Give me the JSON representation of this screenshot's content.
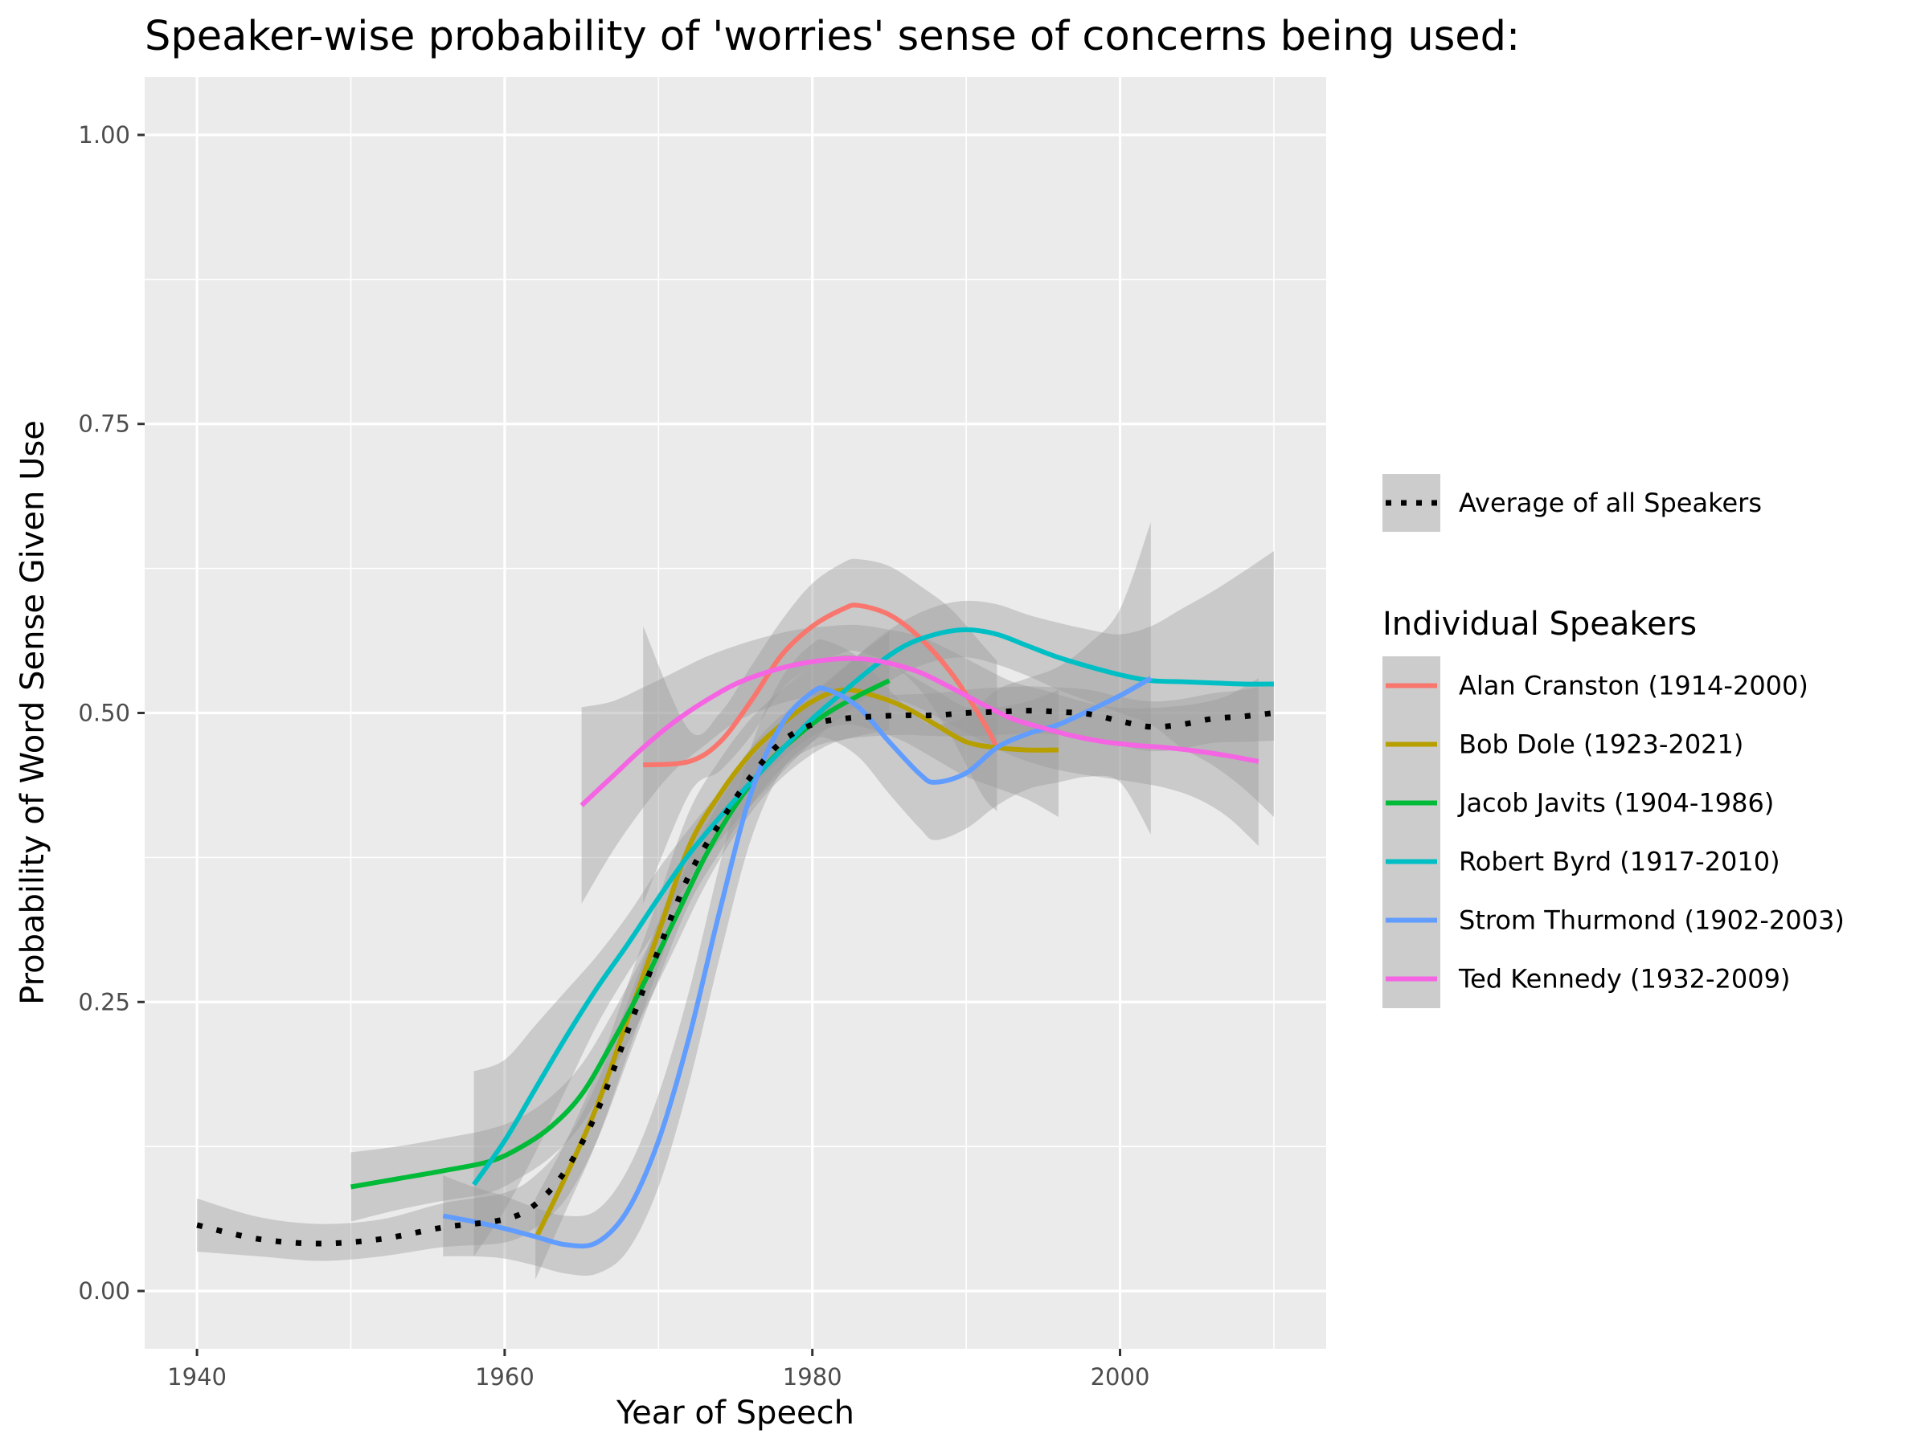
{
  "chart_data": {
    "type": "line",
    "title": "Speaker-wise probability of 'worries' sense of concerns being used:",
    "xlabel": "Year of Speech",
    "ylabel": "Probability of Word Sense Given Use",
    "xlim": [
      1936.6,
      2013.4
    ],
    "ylim": [
      -0.05,
      1.05
    ],
    "x_ticks": [
      1940,
      1960,
      1980,
      2000
    ],
    "x_tick_labels": [
      "1940",
      "1960",
      "1980",
      "2000"
    ],
    "y_ticks": [
      0,
      0.25,
      0.5,
      0.75,
      1.0
    ],
    "y_tick_labels": [
      "0.00",
      "0.25",
      "0.50",
      "0.75",
      "1.00"
    ],
    "grid": true,
    "legend_position": "right",
    "average_legend_label": "Average of all Speakers",
    "legend_title": "Individual Speakers",
    "average": {
      "name": "Average of all Speakers",
      "color": "#000000",
      "x": [
        1940,
        1944,
        1948,
        1952,
        1956,
        1960,
        1962,
        1964,
        1966,
        1968,
        1970,
        1972,
        1974,
        1976,
        1978,
        1980,
        1982,
        1984,
        1986,
        1988,
        1990,
        1992,
        1994,
        1996,
        1998,
        2000,
        2002,
        2004,
        2006,
        2008,
        2010
      ],
      "y": [
        0.057,
        0.045,
        0.041,
        0.045,
        0.055,
        0.062,
        0.075,
        0.105,
        0.155,
        0.225,
        0.295,
        0.36,
        0.405,
        0.445,
        0.475,
        0.49,
        0.495,
        0.497,
        0.498,
        0.498,
        0.5,
        0.501,
        0.502,
        0.501,
        0.499,
        0.493,
        0.488,
        0.49,
        0.495,
        0.497,
        0.5
      ],
      "band": [
        [
          0.08,
          0.034
        ],
        [
          0.064,
          0.03
        ],
        [
          0.058,
          0.026
        ],
        [
          0.062,
          0.03
        ],
        [
          0.076,
          0.038
        ],
        [
          0.085,
          0.042
        ],
        [
          0.1,
          0.055
        ],
        [
          0.13,
          0.08
        ],
        [
          0.18,
          0.13
        ],
        [
          0.25,
          0.2
        ],
        [
          0.32,
          0.27
        ],
        [
          0.385,
          0.335
        ],
        [
          0.43,
          0.38
        ],
        [
          0.47,
          0.42
        ],
        [
          0.498,
          0.452
        ],
        [
          0.512,
          0.47
        ],
        [
          0.515,
          0.477
        ],
        [
          0.515,
          0.48
        ],
        [
          0.516,
          0.481
        ],
        [
          0.517,
          0.48
        ],
        [
          0.52,
          0.48
        ],
        [
          0.522,
          0.481
        ],
        [
          0.523,
          0.482
        ],
        [
          0.522,
          0.481
        ],
        [
          0.52,
          0.478
        ],
        [
          0.514,
          0.472
        ],
        [
          0.51,
          0.467
        ],
        [
          0.512,
          0.469
        ],
        [
          0.517,
          0.474
        ],
        [
          0.52,
          0.475
        ],
        [
          0.525,
          0.476
        ]
      ]
    },
    "series": [
      {
        "name": "Alan Cranston (1914-2000)",
        "color": "#F8766D",
        "x": [
          1969,
          1972,
          1974,
          1976,
          1978,
          1980,
          1982,
          1983,
          1985,
          1987,
          1989,
          1991,
          1992
        ],
        "y": [
          0.455,
          0.458,
          0.475,
          0.51,
          0.55,
          0.575,
          0.59,
          0.593,
          0.585,
          0.565,
          0.535,
          0.495,
          0.47
        ],
        "band": [
          [
            0.575,
            0.335
          ],
          [
            0.485,
            0.43
          ],
          [
            0.5,
            0.45
          ],
          [
            0.54,
            0.48
          ],
          [
            0.58,
            0.52
          ],
          [
            0.612,
            0.54
          ],
          [
            0.63,
            0.552
          ],
          [
            0.633,
            0.553
          ],
          [
            0.627,
            0.543
          ],
          [
            0.61,
            0.52
          ],
          [
            0.59,
            0.48
          ],
          [
            0.56,
            0.43
          ],
          [
            0.545,
            0.415
          ]
        ]
      },
      {
        "name": "Bob Dole (1923-2021)",
        "color": "#B79F00",
        "x": [
          1962,
          1964,
          1966,
          1968,
          1970,
          1972,
          1974,
          1976,
          1978,
          1980,
          1982,
          1984,
          1986,
          1988,
          1990,
          1992,
          1994,
          1996
        ],
        "y": [
          0.045,
          0.1,
          0.16,
          0.235,
          0.31,
          0.385,
          0.43,
          0.465,
          0.49,
          0.51,
          0.52,
          0.515,
          0.505,
          0.49,
          0.475,
          0.47,
          0.468,
          0.468
        ],
        "band": [
          [
            0.08,
            0.01
          ],
          [
            0.13,
            0.07
          ],
          [
            0.19,
            0.13
          ],
          [
            0.265,
            0.205
          ],
          [
            0.34,
            0.28
          ],
          [
            0.415,
            0.355
          ],
          [
            0.46,
            0.4
          ],
          [
            0.495,
            0.435
          ],
          [
            0.52,
            0.46
          ],
          [
            0.54,
            0.48
          ],
          [
            0.55,
            0.49
          ],
          [
            0.545,
            0.485
          ],
          [
            0.535,
            0.475
          ],
          [
            0.52,
            0.46
          ],
          [
            0.505,
            0.445
          ],
          [
            0.505,
            0.435
          ],
          [
            0.51,
            0.425
          ],
          [
            0.52,
            0.41
          ]
        ]
      },
      {
        "name": "Jacob Javits (1904-1986)",
        "color": "#00BA38",
        "x": [
          1950,
          1953,
          1956,
          1959,
          1961,
          1963,
          1965,
          1967,
          1969,
          1971,
          1973,
          1975,
          1977,
          1979,
          1981,
          1983,
          1985
        ],
        "y": [
          0.09,
          0.097,
          0.104,
          0.112,
          0.124,
          0.142,
          0.17,
          0.215,
          0.265,
          0.32,
          0.375,
          0.42,
          0.455,
          0.48,
          0.5,
          0.515,
          0.528
        ],
        "band": [
          [
            0.12,
            0.06
          ],
          [
            0.125,
            0.07
          ],
          [
            0.132,
            0.078
          ],
          [
            0.14,
            0.085
          ],
          [
            0.15,
            0.098
          ],
          [
            0.168,
            0.116
          ],
          [
            0.196,
            0.144
          ],
          [
            0.24,
            0.19
          ],
          [
            0.29,
            0.24
          ],
          [
            0.345,
            0.295
          ],
          [
            0.4,
            0.35
          ],
          [
            0.445,
            0.395
          ],
          [
            0.48,
            0.43
          ],
          [
            0.505,
            0.455
          ],
          [
            0.528,
            0.472
          ],
          [
            0.55,
            0.48
          ],
          [
            0.57,
            0.485
          ]
        ]
      },
      {
        "name": "Robert Byrd (1917-2010)",
        "color": "#00BFC4",
        "x": [
          1958,
          1960,
          1962,
          1964,
          1966,
          1968,
          1970,
          1972,
          1974,
          1976,
          1978,
          1980,
          1982,
          1984,
          1986,
          1988,
          1990,
          1992,
          1994,
          1996,
          1998,
          2000,
          2002,
          2004,
          2006,
          2008,
          2010
        ],
        "y": [
          0.092,
          0.13,
          0.175,
          0.22,
          0.262,
          0.3,
          0.34,
          0.378,
          0.41,
          0.44,
          0.468,
          0.495,
          0.518,
          0.54,
          0.558,
          0.568,
          0.572,
          0.568,
          0.558,
          0.548,
          0.54,
          0.533,
          0.528,
          0.527,
          0.526,
          0.525,
          0.525
        ],
        "band": [
          [
            0.19,
            0.03
          ],
          [
            0.2,
            0.07
          ],
          [
            0.23,
            0.12
          ],
          [
            0.26,
            0.175
          ],
          [
            0.29,
            0.23
          ],
          [
            0.325,
            0.275
          ],
          [
            0.365,
            0.315
          ],
          [
            0.4,
            0.355
          ],
          [
            0.432,
            0.39
          ],
          [
            0.46,
            0.42
          ],
          [
            0.488,
            0.448
          ],
          [
            0.515,
            0.475
          ],
          [
            0.538,
            0.498
          ],
          [
            0.562,
            0.518
          ],
          [
            0.58,
            0.535
          ],
          [
            0.592,
            0.545
          ],
          [
            0.597,
            0.548
          ],
          [
            0.594,
            0.542
          ],
          [
            0.585,
            0.532
          ],
          [
            0.578,
            0.52
          ],
          [
            0.572,
            0.51
          ],
          [
            0.568,
            0.5
          ],
          [
            0.575,
            0.49
          ],
          [
            0.59,
            0.47
          ],
          [
            0.605,
            0.455
          ],
          [
            0.622,
            0.435
          ],
          [
            0.64,
            0.41
          ]
        ]
      },
      {
        "name": "Strom Thurmond (1902-2003)",
        "color": "#619CFF",
        "x": [
          1956,
          1958,
          1960,
          1962,
          1964,
          1966,
          1968,
          1970,
          1972,
          1974,
          1976,
          1978,
          1980,
          1981,
          1983,
          1985,
          1987,
          1988,
          1990,
          1992,
          1994,
          1996,
          1998,
          2000,
          2002
        ],
        "y": [
          0.065,
          0.06,
          0.054,
          0.047,
          0.04,
          0.042,
          0.07,
          0.13,
          0.22,
          0.33,
          0.43,
          0.49,
          0.518,
          0.52,
          0.505,
          0.475,
          0.447,
          0.44,
          0.448,
          0.47,
          0.482,
          0.49,
          0.502,
          0.515,
          0.53
        ],
        "band": [
          [
            0.1,
            0.03
          ],
          [
            0.09,
            0.03
          ],
          [
            0.082,
            0.028
          ],
          [
            0.072,
            0.022
          ],
          [
            0.065,
            0.015
          ],
          [
            0.07,
            0.015
          ],
          [
            0.105,
            0.035
          ],
          [
            0.17,
            0.09
          ],
          [
            0.26,
            0.18
          ],
          [
            0.37,
            0.29
          ],
          [
            0.47,
            0.39
          ],
          [
            0.53,
            0.45
          ],
          [
            0.56,
            0.475
          ],
          [
            0.562,
            0.478
          ],
          [
            0.548,
            0.462
          ],
          [
            0.52,
            0.43
          ],
          [
            0.495,
            0.4
          ],
          [
            0.49,
            0.39
          ],
          [
            0.497,
            0.4
          ],
          [
            0.52,
            0.42
          ],
          [
            0.53,
            0.434
          ],
          [
            0.54,
            0.44
          ],
          [
            0.56,
            0.445
          ],
          [
            0.59,
            0.44
          ],
          [
            0.665,
            0.395
          ]
        ]
      },
      {
        "name": "Ted Kennedy (1932-2009)",
        "color": "#F564E3",
        "x": [
          1965,
          1967,
          1969,
          1971,
          1973,
          1975,
          1977,
          1979,
          1981,
          1983,
          1985,
          1987,
          1989,
          1991,
          1993,
          1995,
          1997,
          1999,
          2001,
          2003,
          2005,
          2007,
          2009
        ],
        "y": [
          0.42,
          0.445,
          0.47,
          0.492,
          0.51,
          0.525,
          0.535,
          0.542,
          0.546,
          0.547,
          0.543,
          0.535,
          0.522,
          0.508,
          0.495,
          0.487,
          0.48,
          0.475,
          0.472,
          0.47,
          0.467,
          0.463,
          0.458
        ],
        "band": [
          [
            0.505,
            0.335
          ],
          [
            0.51,
            0.38
          ],
          [
            0.522,
            0.418
          ],
          [
            0.535,
            0.45
          ],
          [
            0.548,
            0.472
          ],
          [
            0.558,
            0.492
          ],
          [
            0.566,
            0.504
          ],
          [
            0.572,
            0.512
          ],
          [
            0.575,
            0.517
          ],
          [
            0.576,
            0.518
          ],
          [
            0.572,
            0.514
          ],
          [
            0.566,
            0.504
          ],
          [
            0.554,
            0.49
          ],
          [
            0.54,
            0.476
          ],
          [
            0.527,
            0.463
          ],
          [
            0.52,
            0.454
          ],
          [
            0.512,
            0.448
          ],
          [
            0.506,
            0.444
          ],
          [
            0.504,
            0.44
          ],
          [
            0.505,
            0.435
          ],
          [
            0.508,
            0.426
          ],
          [
            0.515,
            0.41
          ],
          [
            0.53,
            0.385
          ]
        ]
      }
    ]
  }
}
